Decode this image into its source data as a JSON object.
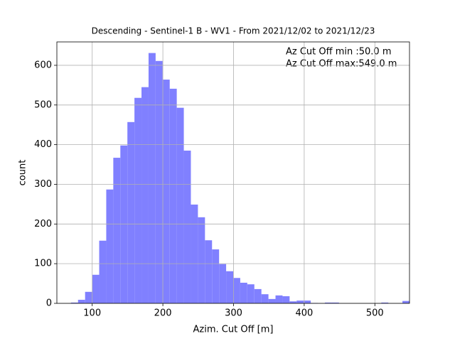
{
  "chart_data": {
    "type": "histogram",
    "title": "Descending - Sentinel-1 B - WV1 - From 2021/12/02 to 2021/12/23",
    "x_label": "Azim. Cut Off [m]",
    "y_label": "count",
    "annotations": [
      "Az Cut Off min :50.0 m",
      "Az Cut Off max:549.0 m"
    ],
    "bins": [
      50,
      59.98,
      69.96,
      79.94,
      89.92,
      99.9,
      109.88,
      119.86,
      129.84,
      139.82,
      149.8,
      159.78,
      169.76,
      179.74,
      189.72,
      199.7,
      209.68,
      219.66,
      229.64,
      239.62,
      249.6,
      259.58,
      269.56,
      279.54,
      289.52,
      299.5,
      309.48,
      319.46,
      329.44,
      339.42,
      349.4,
      359.38,
      369.36,
      379.34,
      389.32,
      399.3,
      409.28,
      419.26,
      429.24,
      439.22,
      449.2,
      459.18,
      469.16,
      479.14,
      489.12,
      499.1,
      509.08,
      519.06,
      529.04,
      539.02,
      549
    ],
    "values": [
      0,
      0,
      2,
      9,
      29,
      72,
      158,
      287,
      367,
      398,
      457,
      518,
      545,
      631,
      611,
      564,
      541,
      493,
      385,
      249,
      217,
      159,
      136,
      99,
      81,
      64,
      52,
      48,
      36,
      23,
      11,
      20,
      18,
      5,
      7,
      7,
      1,
      0,
      2,
      2,
      0,
      0,
      0,
      0,
      0,
      0,
      2,
      0,
      0,
      6
    ],
    "color": "#8080ff",
    "xlim": [
      50,
      549
    ],
    "ylim": [
      0,
      659
    ],
    "xticks": [
      100,
      200,
      300,
      400,
      500
    ],
    "yticks": [
      0,
      100,
      200,
      300,
      400,
      500,
      600
    ],
    "grid": true
  }
}
